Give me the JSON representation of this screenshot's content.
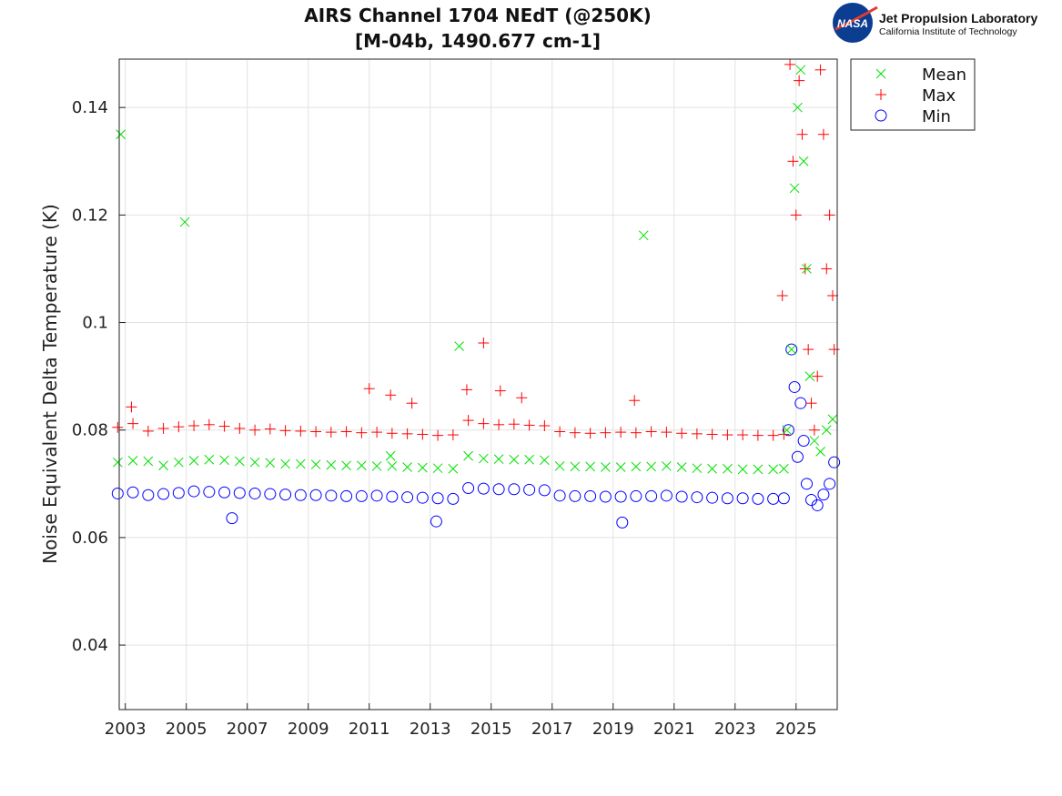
{
  "logo": {
    "org": "Jet Propulsion Laboratory",
    "sub": "California Institute of Technology",
    "badge": "NASA"
  },
  "chart_data": {
    "type": "scatter",
    "title": [
      "AIRS Channel 1704 NEdT (@250K)",
      "[M-04b, 1490.677 cm-1]"
    ],
    "xlabel": "",
    "ylabel": "Noise Equivalent Delta Temperature (K)",
    "xlim": [
      2002.8,
      2026.35
    ],
    "ylim": [
      0.028,
      0.149
    ],
    "xticks": [
      2003,
      2005,
      2007,
      2009,
      2011,
      2013,
      2015,
      2017,
      2019,
      2021,
      2023,
      2025
    ],
    "xtick_labels": [
      "2003",
      "2005",
      "2007",
      "2009",
      "2011",
      "2013",
      "2015",
      "2017",
      "2019",
      "2021",
      "2023",
      "2025"
    ],
    "yticks": [
      0.04,
      0.06,
      0.08,
      0.1,
      0.12,
      0.14
    ],
    "ytick_labels": [
      "0.04",
      "0.06",
      "0.08",
      "0.1",
      "0.12",
      "0.14"
    ],
    "grid": true,
    "legend": "outside-top-right",
    "series": [
      {
        "name": "Mean",
        "marker": "x",
        "color": "#00e000",
        "points": [
          [
            2002.75,
            0.074
          ],
          [
            2003.25,
            0.0743
          ],
          [
            2003.75,
            0.0742
          ],
          [
            2004.25,
            0.0734
          ],
          [
            2004.75,
            0.074
          ],
          [
            2005.25,
            0.0743
          ],
          [
            2005.75,
            0.0745
          ],
          [
            2006.25,
            0.0744
          ],
          [
            2006.75,
            0.0742
          ],
          [
            2007.25,
            0.074
          ],
          [
            2007.75,
            0.0739
          ],
          [
            2008.25,
            0.0737
          ],
          [
            2008.75,
            0.0737
          ],
          [
            2009.25,
            0.0736
          ],
          [
            2009.75,
            0.0735
          ],
          [
            2010.25,
            0.0734
          ],
          [
            2010.75,
            0.0734
          ],
          [
            2011.25,
            0.0733
          ],
          [
            2011.75,
            0.0733
          ],
          [
            2012.25,
            0.0731
          ],
          [
            2012.75,
            0.073
          ],
          [
            2013.25,
            0.0729
          ],
          [
            2013.75,
            0.0728
          ],
          [
            2014.25,
            0.0752
          ],
          [
            2014.75,
            0.0747
          ],
          [
            2015.25,
            0.0746
          ],
          [
            2015.75,
            0.0745
          ],
          [
            2016.25,
            0.0745
          ],
          [
            2016.75,
            0.0744
          ],
          [
            2017.25,
            0.0733
          ],
          [
            2017.75,
            0.0732
          ],
          [
            2018.25,
            0.0732
          ],
          [
            2018.75,
            0.0731
          ],
          [
            2019.25,
            0.0731
          ],
          [
            2019.75,
            0.0732
          ],
          [
            2020.25,
            0.0732
          ],
          [
            2020.75,
            0.0733
          ],
          [
            2021.25,
            0.0731
          ],
          [
            2021.75,
            0.0729
          ],
          [
            2022.25,
            0.0728
          ],
          [
            2022.75,
            0.0728
          ],
          [
            2023.25,
            0.0727
          ],
          [
            2023.75,
            0.0727
          ],
          [
            2024.25,
            0.0727
          ],
          [
            2024.6,
            0.0728
          ],
          [
            2002.85,
            0.135
          ],
          [
            2004.95,
            0.1187
          ],
          [
            2011.7,
            0.0752
          ],
          [
            2013.95,
            0.0956
          ],
          [
            2020.0,
            0.1162
          ],
          [
            2024.7,
            0.08
          ],
          [
            2024.85,
            0.095
          ],
          [
            2024.95,
            0.125
          ],
          [
            2025.05,
            0.14
          ],
          [
            2025.15,
            0.147
          ],
          [
            2025.25,
            0.13
          ],
          [
            2025.35,
            0.11
          ],
          [
            2025.45,
            0.09
          ],
          [
            2025.6,
            0.078
          ],
          [
            2025.8,
            0.076
          ],
          [
            2026.0,
            0.08
          ],
          [
            2026.2,
            0.082
          ]
        ]
      },
      {
        "name": "Max",
        "marker": "+",
        "color": "#ff0000",
        "points": [
          [
            2002.75,
            0.0805
          ],
          [
            2003.25,
            0.0812
          ],
          [
            2003.75,
            0.0798
          ],
          [
            2004.25,
            0.0803
          ],
          [
            2004.75,
            0.0806
          ],
          [
            2005.25,
            0.0808
          ],
          [
            2005.75,
            0.081
          ],
          [
            2006.25,
            0.0807
          ],
          [
            2006.75,
            0.0803
          ],
          [
            2007.25,
            0.08
          ],
          [
            2007.75,
            0.0802
          ],
          [
            2008.25,
            0.0799
          ],
          [
            2008.75,
            0.0798
          ],
          [
            2009.25,
            0.0797
          ],
          [
            2009.75,
            0.0796
          ],
          [
            2010.25,
            0.0797
          ],
          [
            2010.75,
            0.0795
          ],
          [
            2011.25,
            0.0796
          ],
          [
            2011.75,
            0.0794
          ],
          [
            2012.25,
            0.0793
          ],
          [
            2012.75,
            0.0792
          ],
          [
            2013.25,
            0.079
          ],
          [
            2013.75,
            0.0791
          ],
          [
            2014.25,
            0.0818
          ],
          [
            2014.75,
            0.0812
          ],
          [
            2015.25,
            0.081
          ],
          [
            2015.75,
            0.0811
          ],
          [
            2016.25,
            0.0809
          ],
          [
            2016.75,
            0.0808
          ],
          [
            2017.25,
            0.0797
          ],
          [
            2017.75,
            0.0795
          ],
          [
            2018.25,
            0.0794
          ],
          [
            2018.75,
            0.0795
          ],
          [
            2019.25,
            0.0796
          ],
          [
            2019.75,
            0.0795
          ],
          [
            2020.25,
            0.0797
          ],
          [
            2020.75,
            0.0796
          ],
          [
            2021.25,
            0.0794
          ],
          [
            2021.75,
            0.0793
          ],
          [
            2022.25,
            0.0792
          ],
          [
            2022.75,
            0.0791
          ],
          [
            2023.25,
            0.0791
          ],
          [
            2023.75,
            0.079
          ],
          [
            2024.25,
            0.079
          ],
          [
            2024.6,
            0.0792
          ],
          [
            2003.2,
            0.0843
          ],
          [
            2011.0,
            0.0877
          ],
          [
            2011.7,
            0.0865
          ],
          [
            2012.4,
            0.085
          ],
          [
            2014.2,
            0.0875
          ],
          [
            2014.75,
            0.0962
          ],
          [
            2015.3,
            0.0873
          ],
          [
            2016.0,
            0.086
          ],
          [
            2019.7,
            0.0855
          ],
          [
            2024.55,
            0.105
          ],
          [
            2024.8,
            0.148
          ],
          [
            2024.9,
            0.13
          ],
          [
            2025.0,
            0.12
          ],
          [
            2025.1,
            0.145
          ],
          [
            2025.2,
            0.135
          ],
          [
            2025.3,
            0.11
          ],
          [
            2025.4,
            0.095
          ],
          [
            2025.5,
            0.085
          ],
          [
            2025.6,
            0.08
          ],
          [
            2025.7,
            0.09
          ],
          [
            2025.8,
            0.147
          ],
          [
            2025.9,
            0.135
          ],
          [
            2026.0,
            0.11
          ],
          [
            2026.1,
            0.12
          ],
          [
            2026.2,
            0.105
          ],
          [
            2026.25,
            0.095
          ]
        ]
      },
      {
        "name": "Min",
        "marker": "o",
        "color": "#0000ff",
        "points": [
          [
            2002.75,
            0.0682
          ],
          [
            2003.25,
            0.0684
          ],
          [
            2003.75,
            0.0679
          ],
          [
            2004.25,
            0.0681
          ],
          [
            2004.75,
            0.0683
          ],
          [
            2005.25,
            0.0686
          ],
          [
            2005.75,
            0.0685
          ],
          [
            2006.25,
            0.0684
          ],
          [
            2006.75,
            0.0683
          ],
          [
            2007.25,
            0.0682
          ],
          [
            2007.75,
            0.0681
          ],
          [
            2008.25,
            0.068
          ],
          [
            2008.75,
            0.0679
          ],
          [
            2009.25,
            0.0679
          ],
          [
            2009.75,
            0.0678
          ],
          [
            2010.25,
            0.0677
          ],
          [
            2010.75,
            0.0677
          ],
          [
            2011.25,
            0.0678
          ],
          [
            2011.75,
            0.0676
          ],
          [
            2012.25,
            0.0675
          ],
          [
            2012.75,
            0.0674
          ],
          [
            2013.25,
            0.0673
          ],
          [
            2013.75,
            0.0672
          ],
          [
            2014.25,
            0.0692
          ],
          [
            2014.75,
            0.0691
          ],
          [
            2015.25,
            0.069
          ],
          [
            2015.75,
            0.069
          ],
          [
            2016.25,
            0.0689
          ],
          [
            2016.75,
            0.0688
          ],
          [
            2017.25,
            0.0678
          ],
          [
            2017.75,
            0.0677
          ],
          [
            2018.25,
            0.0677
          ],
          [
            2018.75,
            0.0676
          ],
          [
            2019.25,
            0.0676
          ],
          [
            2019.75,
            0.0677
          ],
          [
            2020.25,
            0.0677
          ],
          [
            2020.75,
            0.0678
          ],
          [
            2021.25,
            0.0676
          ],
          [
            2021.75,
            0.0675
          ],
          [
            2022.25,
            0.0674
          ],
          [
            2022.75,
            0.0673
          ],
          [
            2023.25,
            0.0673
          ],
          [
            2023.75,
            0.0672
          ],
          [
            2024.25,
            0.0672
          ],
          [
            2024.6,
            0.0673
          ],
          [
            2006.5,
            0.0636
          ],
          [
            2013.2,
            0.063
          ],
          [
            2019.3,
            0.0628
          ],
          [
            2024.75,
            0.08
          ],
          [
            2024.85,
            0.095
          ],
          [
            2024.95,
            0.088
          ],
          [
            2025.05,
            0.075
          ],
          [
            2025.15,
            0.085
          ],
          [
            2025.25,
            0.078
          ],
          [
            2025.35,
            0.07
          ],
          [
            2025.5,
            0.067
          ],
          [
            2025.7,
            0.066
          ],
          [
            2025.9,
            0.068
          ],
          [
            2026.1,
            0.07
          ],
          [
            2026.25,
            0.074
          ]
        ]
      }
    ]
  }
}
